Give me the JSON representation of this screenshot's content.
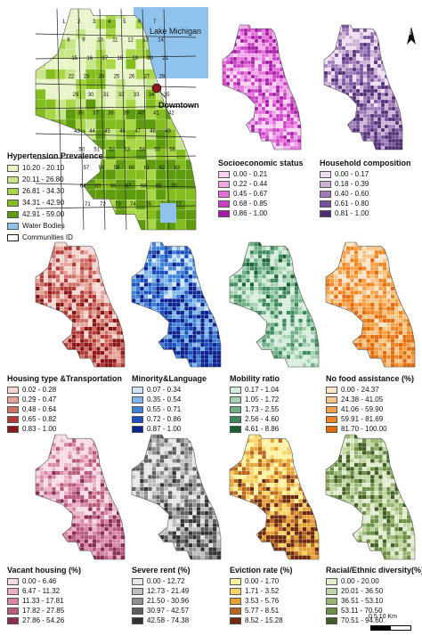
{
  "main_map": {
    "lake_label": "Lake Michigan",
    "downtown_label": "Downtown",
    "community_ids": [
      "1",
      "2",
      "3",
      "4",
      "5",
      "6",
      "7",
      "8",
      "9",
      "10",
      "11",
      "12",
      "13",
      "14",
      "15",
      "16",
      "17",
      "18",
      "19",
      "20",
      "21",
      "22",
      "23",
      "24",
      "25",
      "26",
      "27",
      "28",
      "29",
      "30",
      "31",
      "32",
      "33",
      "34",
      "35",
      "36",
      "37",
      "38",
      "39",
      "40",
      "41",
      "42",
      "43",
      "44",
      "45",
      "46",
      "47",
      "48",
      "49",
      "50",
      "51",
      "52",
      "53",
      "54",
      "55",
      "56",
      "57",
      "58",
      "59",
      "60",
      "61",
      "62",
      "63",
      "64",
      "65",
      "66",
      "67",
      "68",
      "69",
      "70",
      "71",
      "72",
      "73",
      "74",
      "75",
      "76",
      "77"
    ],
    "legend": {
      "title": "Hypertension Prevalence",
      "items": [
        {
          "label": "10.20 - 20.10",
          "color": "#e8f5c8"
        },
        {
          "label": "20.11 - 26.80",
          "color": "#c9e68a"
        },
        {
          "label": "26.81 - 34.30",
          "color": "#a8d645"
        },
        {
          "label": "34.31 - 42.90",
          "color": "#84bd1e"
        },
        {
          "label": "42.91 - 59.00",
          "color": "#5e9c0e"
        },
        {
          "label": "Water Bodies",
          "color": "#8fc3ee"
        }
      ],
      "community_label": "Communities ID"
    }
  },
  "panels": [
    {
      "title": "Socioeconomic status",
      "colors": [
        "#fad3f3",
        "#f1a6e9",
        "#e46fdb",
        "#c93fc5",
        "#a51aa4"
      ],
      "labels": [
        "0.00 - 0.21",
        "0.22 - 0.44",
        "0.45 - 0.67",
        "0.68 - 0.85",
        "0.86 - 1.00"
      ]
    },
    {
      "title": "Household composition",
      "colors": [
        "#eeddf2",
        "#cbb0d6",
        "#9f79b8",
        "#754f99",
        "#4e2b73"
      ],
      "labels": [
        "0.00 - 0.17",
        "0.18 - 0.39",
        "0.40 - 0.60",
        "0.61 - 0.80",
        "0.81 - 1.00"
      ]
    },
    {
      "title": "Housing type &Transportation",
      "colors": [
        "#f4d6d2",
        "#e5a59c",
        "#cf6f66",
        "#b13a36",
        "#8a1616"
      ],
      "labels": [
        "0.02 - 0.28",
        "0.29 - 0.47",
        "0.48 - 0.64",
        "0.65 - 0.82",
        "0.83 - 1.00"
      ]
    },
    {
      "title": "Minority&Language",
      "colors": [
        "#cfe4f7",
        "#7fb5ea",
        "#3f82d8",
        "#1e50bd",
        "#0c228e"
      ],
      "labels": [
        "0.07 - 0.34",
        "0.35 - 0.54",
        "0.55 - 0.71",
        "0.72 - 0.86",
        "0.87 - 1.00"
      ]
    },
    {
      "title": "Mobility ratio",
      "colors": [
        "#d6ecdd",
        "#a5d3b2",
        "#6fb086",
        "#3e8a5c",
        "#1b6136"
      ],
      "labels": [
        "0.17 - 1.04",
        "1.05 - 1.72",
        "1.73 - 2.55",
        "2.56 - 4.60",
        "4.61 - 8.86"
      ]
    },
    {
      "title": "No food assistance (%)",
      "colors": [
        "#fde5c9",
        "#fbc487",
        "#f7a247",
        "#f28520",
        "#e26b0b"
      ],
      "labels": [
        "0.00 - 24.37",
        "24.38 - 41.05",
        "41.06 - 59.90",
        "59.91 - 81.69",
        "81.70 - 100.00"
      ]
    },
    {
      "title": "Vacant housing (%)",
      "colors": [
        "#f7dbe5",
        "#e9b3c7",
        "#d888a6",
        "#b95a7e",
        "#8b2d55"
      ],
      "labels": [
        "0.00 - 6.46",
        "6.47 - 11.32",
        "11.33 - 17.81",
        "17.82 - 27.85",
        "27.86 - 54.26"
      ]
    },
    {
      "title": "Severe rent (%)",
      "colors": [
        "#e6e6e6",
        "#bdbdbd",
        "#8e8e8e",
        "#5e5e5e",
        "#333333"
      ],
      "labels": [
        "0.00 - 12.72",
        "12.73 - 21.49",
        "21.50 - 30.96",
        "30.97 - 42.57",
        "42.58 - 74.38"
      ]
    },
    {
      "title": "Eviction rate (%)",
      "colors": [
        "#fff3a0",
        "#f8d463",
        "#e6a233",
        "#b8661a",
        "#6e2a0b"
      ],
      "labels": [
        "0.00 - 1.70",
        "1.71 - 3.52",
        "3.53 - 5.76",
        "5.77 - 8.51",
        "8.52 - 15.28"
      ]
    },
    {
      "title": "Racial/Ethnic diversity(%)",
      "colors": [
        "#e2ecce",
        "#c1d5a0",
        "#97b66f",
        "#6a8f45",
        "#425f26"
      ],
      "labels": [
        "0.00 - 20.00",
        "20.01 - 36.50",
        "36.51 - 53.10",
        "53.11 - 70.50",
        "70.51 - 94.60"
      ]
    }
  ],
  "scale": {
    "unit": "0  5  10 Km"
  },
  "north": "N"
}
